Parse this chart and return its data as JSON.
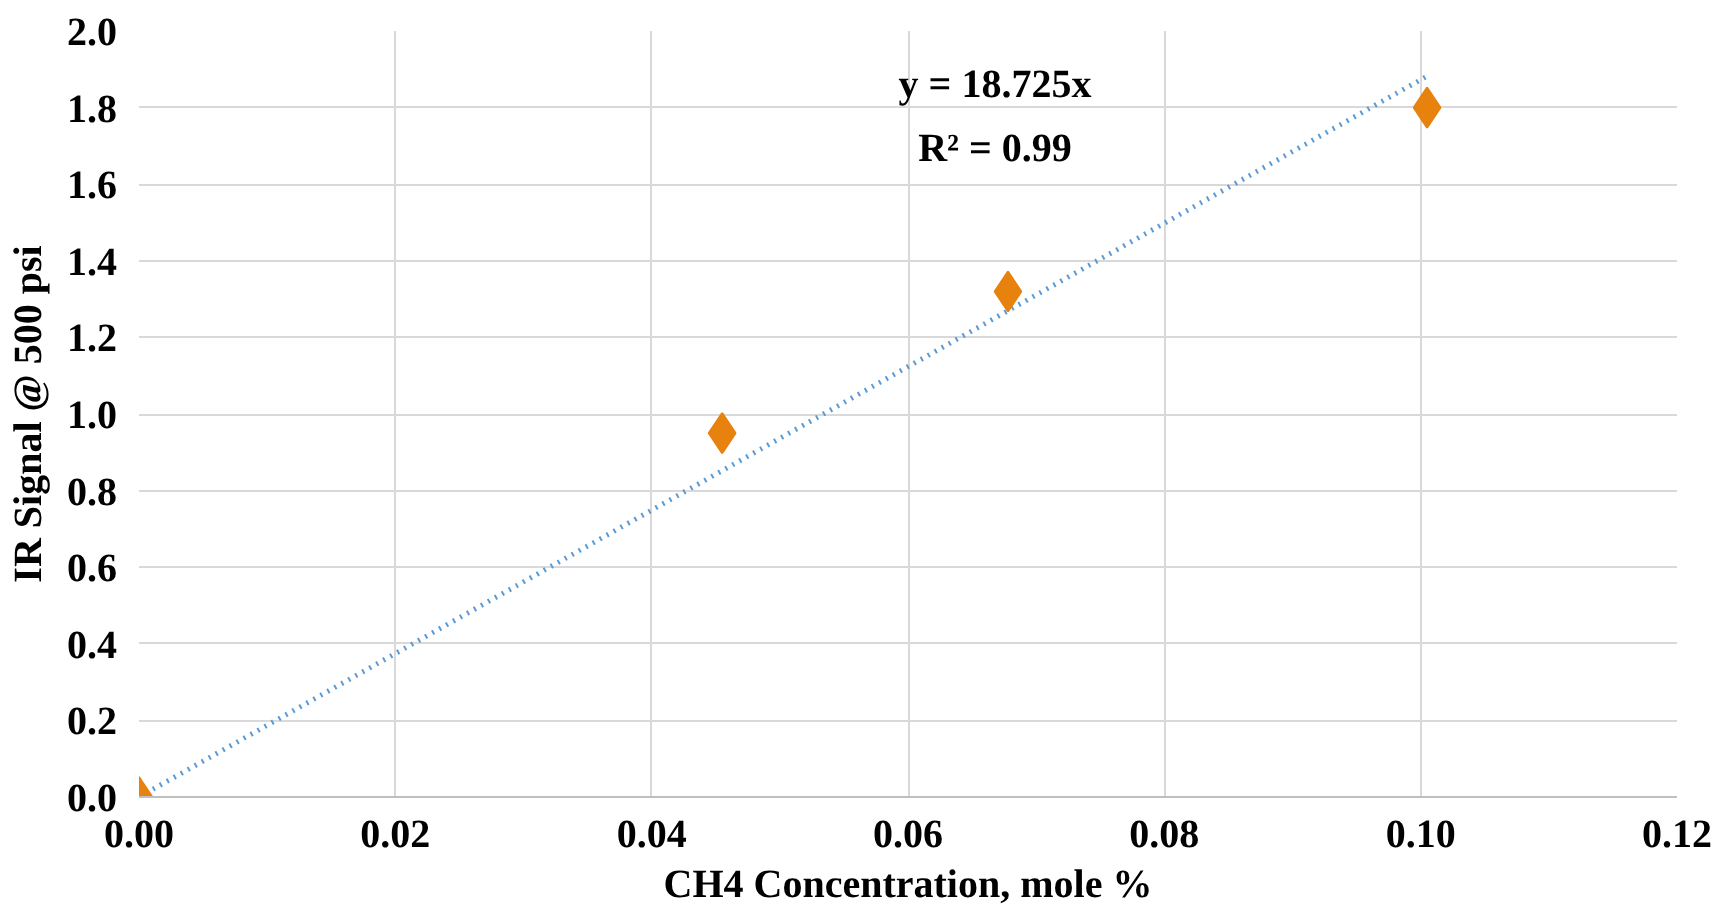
{
  "chart_data": {
    "type": "scatter",
    "xlabel": "CH4 Concentration, mole %",
    "ylabel": "IR Signal @ 500 psi",
    "annotations": [
      "y = 18.725x",
      "R² = 0.99"
    ],
    "series": [
      {
        "color": "#e8820e",
        "marker": "diamond",
        "x": [
          0,
          0.0455,
          0.0678,
          0.1005
        ],
        "values": [
          0,
          0.95,
          1.32,
          1.8
        ]
      },
      {
        "type": "line",
        "color": "#5b9bd5",
        "line_style": "dotted",
        "x": [
          0,
          0.1005
        ],
        "values": [
          0,
          1.882
        ]
      }
    ],
    "xlim": [
      0,
      0.12
    ],
    "ylim": [
      0,
      2.0
    ],
    "xticks": [
      {
        "value": 0,
        "label": "0.00"
      },
      {
        "value": 0.02,
        "label": "0.02"
      },
      {
        "value": 0.04,
        "label": "0.04"
      },
      {
        "value": 0.06,
        "label": "0.06"
      },
      {
        "value": 0.08,
        "label": "0.08"
      },
      {
        "value": 0.1,
        "label": "0.10"
      },
      {
        "value": 0.12,
        "label": "0.12"
      }
    ],
    "yticks": [
      {
        "value": 0,
        "label": "0.0"
      },
      {
        "value": 0.2,
        "label": "0.2"
      },
      {
        "value": 0.4,
        "label": "0.4"
      },
      {
        "value": 0.6,
        "label": "0.6"
      },
      {
        "value": 0.8,
        "label": "0.8"
      },
      {
        "value": 1.0,
        "label": "1.0"
      },
      {
        "value": 1.2,
        "label": "1.2"
      },
      {
        "value": 1.4,
        "label": "1.4"
      },
      {
        "value": 1.6,
        "label": "1.6"
      },
      {
        "value": 1.8,
        "label": "1.8"
      },
      {
        "value": 2.0,
        "label": "2.0"
      }
    ],
    "grid": true
  }
}
